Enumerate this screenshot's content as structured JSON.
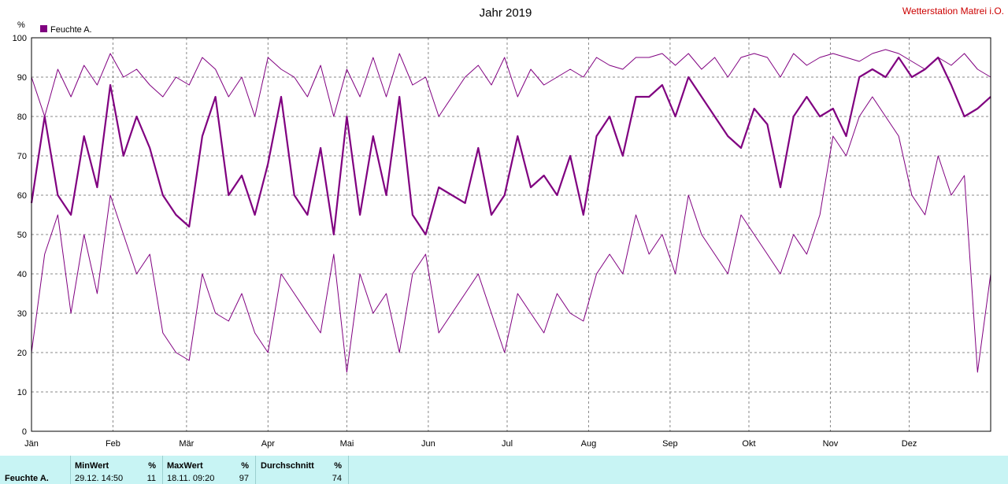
{
  "title": "Jahr 2019",
  "station": "Wetterstation Matrei i.O.",
  "unit": "%",
  "legend": {
    "label": "Feuchte A.",
    "color": "#800080"
  },
  "stats": {
    "row_label": "Feuchte A.",
    "min": {
      "header": "MinWert",
      "unit": "%",
      "when": "29.12.  14:50",
      "value": "11"
    },
    "max": {
      "header": "MaxWert",
      "unit": "%",
      "when": "18.11.  09:20",
      "value": "97"
    },
    "avg": {
      "header": "Durchschnitt",
      "unit": "%",
      "value": "74"
    }
  },
  "chart_data": {
    "type": "line",
    "title": "Jahr 2019",
    "ylabel": "%",
    "ylim": [
      0,
      100
    ],
    "yticks": [
      0,
      10,
      20,
      30,
      40,
      50,
      60,
      70,
      80,
      90,
      100
    ],
    "xlim": [
      0,
      365
    ],
    "month_ticks": [
      {
        "label": "Jän",
        "day": 0
      },
      {
        "label": "Feb",
        "day": 31
      },
      {
        "label": "Mär",
        "day": 59
      },
      {
        "label": "Apr",
        "day": 90
      },
      {
        "label": "Mai",
        "day": 120
      },
      {
        "label": "Jun",
        "day": 151
      },
      {
        "label": "Jul",
        "day": 181
      },
      {
        "label": "Aug",
        "day": 212
      },
      {
        "label": "Sep",
        "day": 243
      },
      {
        "label": "Okt",
        "day": 273
      },
      {
        "label": "Nov",
        "day": 304
      },
      {
        "label": "Dez",
        "day": 334
      }
    ],
    "grid": true,
    "legend_position": "top-left",
    "series": [
      {
        "name": "Feuchte A.",
        "role": "mean",
        "color": "#800080",
        "x": [
          0,
          5,
          10,
          15,
          20,
          25,
          30,
          35,
          40,
          45,
          50,
          55,
          60,
          65,
          70,
          75,
          80,
          85,
          90,
          95,
          100,
          105,
          110,
          115,
          120,
          125,
          130,
          135,
          140,
          145,
          150,
          155,
          160,
          165,
          170,
          175,
          180,
          185,
          190,
          195,
          200,
          205,
          210,
          215,
          220,
          225,
          230,
          235,
          240,
          245,
          250,
          255,
          260,
          265,
          270,
          275,
          280,
          285,
          290,
          295,
          300,
          305,
          310,
          315,
          320,
          325,
          330,
          335,
          340,
          345,
          350,
          355,
          360,
          365
        ],
        "y": [
          58,
          80,
          60,
          55,
          75,
          62,
          88,
          70,
          80,
          72,
          60,
          55,
          52,
          75,
          85,
          60,
          65,
          55,
          68,
          85,
          60,
          55,
          72,
          50,
          80,
          55,
          75,
          60,
          85,
          55,
          50,
          62,
          60,
          58,
          72,
          55,
          60,
          75,
          62,
          65,
          60,
          70,
          55,
          75,
          80,
          70,
          85,
          85,
          88,
          80,
          90,
          85,
          80,
          75,
          72,
          82,
          78,
          62,
          80,
          85,
          80,
          82,
          75,
          90,
          92,
          90,
          95,
          90,
          92,
          95,
          88,
          80,
          82,
          85
        ]
      },
      {
        "name": "",
        "role": "max",
        "color": "#800080",
        "x": [
          0,
          5,
          10,
          15,
          20,
          25,
          30,
          35,
          40,
          45,
          50,
          55,
          60,
          65,
          70,
          75,
          80,
          85,
          90,
          95,
          100,
          105,
          110,
          115,
          120,
          125,
          130,
          135,
          140,
          145,
          150,
          155,
          160,
          165,
          170,
          175,
          180,
          185,
          190,
          195,
          200,
          205,
          210,
          215,
          220,
          225,
          230,
          235,
          240,
          245,
          250,
          255,
          260,
          265,
          270,
          275,
          280,
          285,
          290,
          295,
          300,
          305,
          310,
          315,
          320,
          325,
          330,
          335,
          340,
          345,
          350,
          355,
          360,
          365
        ],
        "y": [
          90,
          80,
          92,
          85,
          93,
          88,
          96,
          90,
          92,
          88,
          85,
          90,
          88,
          95,
          92,
          85,
          90,
          80,
          95,
          92,
          90,
          85,
          93,
          80,
          92,
          85,
          95,
          85,
          96,
          88,
          90,
          80,
          85,
          90,
          93,
          88,
          95,
          85,
          92,
          88,
          90,
          92,
          90,
          95,
          93,
          92,
          95,
          95,
          96,
          93,
          96,
          92,
          95,
          90,
          95,
          96,
          95,
          90,
          96,
          93,
          95,
          96,
          95,
          94,
          96,
          97,
          96,
          94,
          92,
          95,
          93,
          96,
          92,
          90
        ]
      },
      {
        "name": "",
        "role": "min",
        "color": "#800080",
        "x": [
          0,
          5,
          10,
          15,
          20,
          25,
          30,
          35,
          40,
          45,
          50,
          55,
          60,
          65,
          70,
          75,
          80,
          85,
          90,
          95,
          100,
          105,
          110,
          115,
          120,
          125,
          130,
          135,
          140,
          145,
          150,
          155,
          160,
          165,
          170,
          175,
          180,
          185,
          190,
          195,
          200,
          205,
          210,
          215,
          220,
          225,
          230,
          235,
          240,
          245,
          250,
          255,
          260,
          265,
          270,
          275,
          280,
          285,
          290,
          295,
          300,
          305,
          310,
          315,
          320,
          325,
          330,
          335,
          340,
          345,
          350,
          355,
          360,
          365
        ],
        "y": [
          20,
          45,
          55,
          30,
          50,
          35,
          60,
          50,
          40,
          45,
          25,
          20,
          18,
          40,
          30,
          28,
          35,
          25,
          20,
          40,
          35,
          30,
          25,
          45,
          15,
          40,
          30,
          35,
          20,
          40,
          45,
          25,
          30,
          35,
          40,
          30,
          20,
          35,
          30,
          25,
          35,
          30,
          28,
          40,
          45,
          40,
          55,
          45,
          50,
          40,
          60,
          50,
          45,
          40,
          55,
          50,
          45,
          40,
          50,
          45,
          55,
          75,
          70,
          80,
          85,
          80,
          75,
          60,
          55,
          70,
          60,
          65,
          15,
          40
        ]
      }
    ]
  },
  "colors": {
    "series": "#800080",
    "axis": "#000000",
    "stats_bg": "#c8f4f4",
    "station_text": "#cc0000"
  }
}
